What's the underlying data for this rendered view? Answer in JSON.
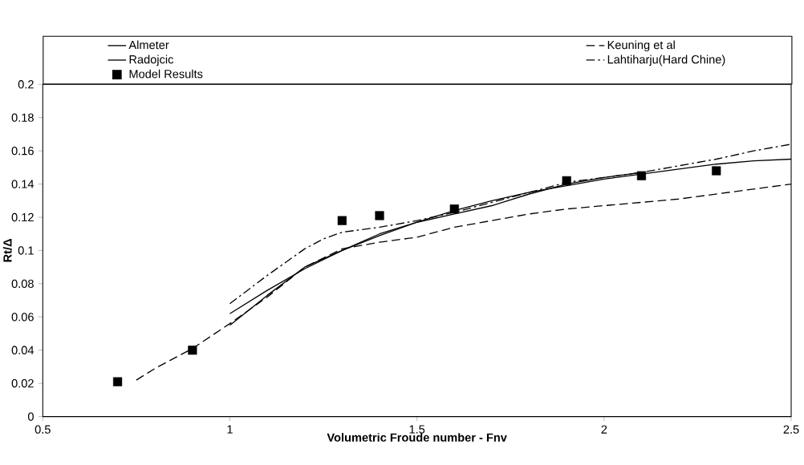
{
  "chart_data": {
    "type": "line",
    "xlabel": "Volumetric Froude number - Fnv",
    "ylabel": "Rt/Δ",
    "xlim": [
      0.5,
      2.5
    ],
    "xticks": [
      0.5,
      1,
      1.5,
      2,
      2.5
    ],
    "ylim": [
      0,
      0.2
    ],
    "yticks": [
      0,
      0.02,
      0.04,
      0.06,
      0.08,
      0.1,
      0.12,
      0.14,
      0.16,
      0.18,
      0.2
    ],
    "legend": "top",
    "grid": false,
    "series": [
      {
        "name": "Almeter",
        "line_style": "solid",
        "color": "#000000",
        "x": [
          1.0,
          1.1,
          1.2,
          1.3,
          1.4,
          1.5,
          1.6,
          1.7,
          1.8,
          1.9,
          2.0,
          2.1,
          2.2,
          2.3,
          2.4,
          2.5
        ],
        "values": [
          0.055,
          0.073,
          0.09,
          0.1,
          0.109,
          0.117,
          0.124,
          0.13,
          0.135,
          0.139,
          0.143,
          0.146,
          0.149,
          0.152,
          0.154,
          0.155
        ]
      },
      {
        "name": "Keuning et al",
        "line_style": "dashed",
        "color": "#000000",
        "x": [
          0.75,
          0.8,
          0.9,
          1.0,
          1.1,
          1.2,
          1.3,
          1.4,
          1.5,
          1.6,
          1.7,
          1.8,
          1.9,
          2.0,
          2.1,
          2.2,
          2.3,
          2.4,
          2.5
        ],
        "values": [
          0.022,
          0.029,
          0.041,
          0.056,
          0.072,
          0.09,
          0.101,
          0.105,
          0.108,
          0.114,
          0.118,
          0.122,
          0.125,
          0.127,
          0.129,
          0.131,
          0.134,
          0.137,
          0.14
        ]
      },
      {
        "name": "Radojcic",
        "line_style": "solid",
        "color": "#000000",
        "x": [
          1.0,
          1.1,
          1.2,
          1.3,
          1.4,
          1.5,
          1.6,
          1.7,
          1.8,
          1.9,
          2.0,
          2.1
        ],
        "values": [
          0.062,
          0.076,
          0.089,
          0.1,
          0.11,
          0.117,
          0.122,
          0.127,
          0.134,
          0.14,
          0.144,
          0.147
        ]
      },
      {
        "name": "Lahtiharju(Hard Chine)",
        "line_style": "dashdot",
        "color": "#000000",
        "x": [
          1.0,
          1.1,
          1.2,
          1.25,
          1.3,
          1.4,
          1.5,
          1.6,
          1.7,
          1.8,
          1.9,
          2.0,
          2.1,
          2.2,
          2.3,
          2.4,
          2.5
        ],
        "values": [
          0.068,
          0.085,
          0.101,
          0.107,
          0.111,
          0.114,
          0.118,
          0.123,
          0.129,
          0.135,
          0.141,
          0.144,
          0.147,
          0.151,
          0.155,
          0.16,
          0.164
        ]
      },
      {
        "name": "Model Results",
        "type": "scatter",
        "marker": "square",
        "color": "#000000",
        "x": [
          0.7,
          0.9,
          1.3,
          1.4,
          1.6,
          1.9,
          2.1,
          2.3
        ],
        "values": [
          0.021,
          0.04,
          0.118,
          0.121,
          0.125,
          0.142,
          0.145,
          0.148
        ]
      }
    ]
  }
}
